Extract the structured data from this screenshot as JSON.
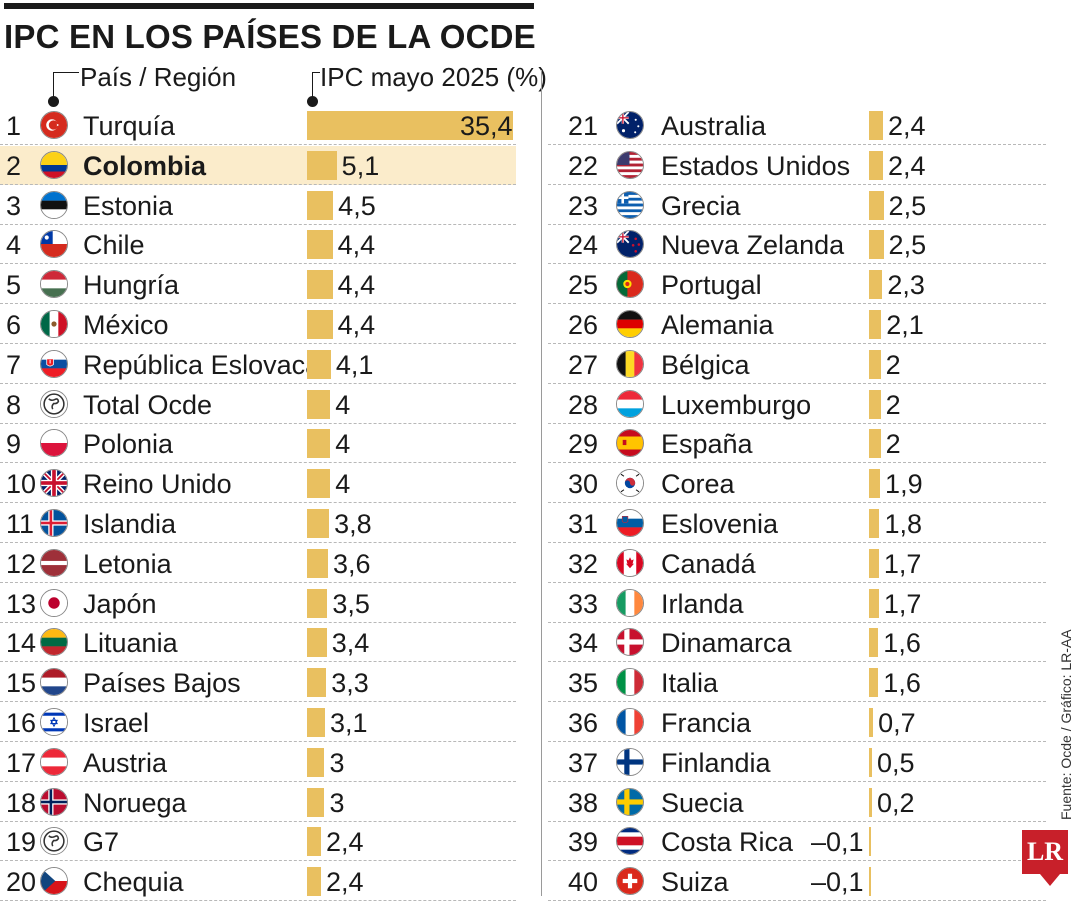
{
  "title": "IPC EN LOS PAÍSES DE LA OCDE",
  "header": {
    "country_label": "País / Región",
    "value_label": "IPC mayo 2025 (%)"
  },
  "source": "Fuente: Ocde / Gráfico: LR-AA",
  "logo_text": "LR",
  "colors": {
    "bar": "#e9c060",
    "highlight": "#fbeccb",
    "text": "#1a1a1a"
  },
  "chart_data": {
    "type": "bar",
    "orientation": "horizontal",
    "title": "IPC EN LOS PAÍSES DE LA OCDE",
    "ylabel": "País / Región",
    "xlabel": "IPC mayo 2025 (%)",
    "highlighted": "Colombia",
    "rows": [
      {
        "rank": "1",
        "name": "Turquía",
        "value": 35.4,
        "label": "35,4",
        "flag": "turkey-flag-icon"
      },
      {
        "rank": "2",
        "name": "Colombia",
        "value": 5.1,
        "label": "5,1",
        "flag": "colombia-flag-icon"
      },
      {
        "rank": "3",
        "name": "Estonia",
        "value": 4.5,
        "label": "4,5",
        "flag": "estonia-flag-icon"
      },
      {
        "rank": "4",
        "name": "Chile",
        "value": 4.4,
        "label": "4,4",
        "flag": "chile-flag-icon"
      },
      {
        "rank": "5",
        "name": "Hungría",
        "value": 4.4,
        "label": "4,4",
        "flag": "hungary-flag-icon"
      },
      {
        "rank": "6",
        "name": "México",
        "value": 4.4,
        "label": "4,4",
        "flag": "mexico-flag-icon"
      },
      {
        "rank": "7",
        "name": "República Eslovaca",
        "value": 4.1,
        "label": "4,1",
        "flag": "slovakia-flag-icon"
      },
      {
        "rank": "8",
        "name": "Total Ocde",
        "value": 4,
        "label": "4",
        "flag": "globe-icon"
      },
      {
        "rank": "9",
        "name": "Polonia",
        "value": 4,
        "label": "4",
        "flag": "poland-flag-icon"
      },
      {
        "rank": "10",
        "name": "Reino Unido",
        "value": 4,
        "label": "4",
        "flag": "uk-flag-icon"
      },
      {
        "rank": "11",
        "name": "Islandia",
        "value": 3.8,
        "label": "3,8",
        "flag": "iceland-flag-icon"
      },
      {
        "rank": "12",
        "name": "Letonia",
        "value": 3.6,
        "label": "3,6",
        "flag": "latvia-flag-icon"
      },
      {
        "rank": "13",
        "name": "Japón",
        "value": 3.5,
        "label": "3,5",
        "flag": "japan-flag-icon"
      },
      {
        "rank": "14",
        "name": "Lituania",
        "value": 3.4,
        "label": "3,4",
        "flag": "lithuania-flag-icon"
      },
      {
        "rank": "15",
        "name": "Países Bajos",
        "value": 3.3,
        "label": "3,3",
        "flag": "netherlands-flag-icon"
      },
      {
        "rank": "16",
        "name": "Israel",
        "value": 3.1,
        "label": "3,1",
        "flag": "israel-flag-icon"
      },
      {
        "rank": "17",
        "name": "Austria",
        "value": 3,
        "label": "3",
        "flag": "austria-flag-icon"
      },
      {
        "rank": "18",
        "name": "Noruega",
        "value": 3,
        "label": "3",
        "flag": "norway-flag-icon"
      },
      {
        "rank": "19",
        "name": "G7",
        "value": 2.4,
        "label": "2,4",
        "flag": "globe-icon"
      },
      {
        "rank": "20",
        "name": "Chequia",
        "value": 2.4,
        "label": "2,4",
        "flag": "czechia-flag-icon"
      },
      {
        "rank": "21",
        "name": "Australia",
        "value": 2.4,
        "label": "2,4",
        "flag": "australia-flag-icon"
      },
      {
        "rank": "22",
        "name": "Estados Unidos",
        "value": 2.4,
        "label": "2,4",
        "flag": "usa-flag-icon"
      },
      {
        "rank": "23",
        "name": "Grecia",
        "value": 2.5,
        "label": "2,5",
        "flag": "greece-flag-icon"
      },
      {
        "rank": "24",
        "name": "Nueva Zelanda",
        "value": 2.5,
        "label": "2,5",
        "flag": "new-zealand-flag-icon"
      },
      {
        "rank": "25",
        "name": "Portugal",
        "value": 2.3,
        "label": "2,3",
        "flag": "portugal-flag-icon"
      },
      {
        "rank": "26",
        "name": "Alemania",
        "value": 2.1,
        "label": "2,1",
        "flag": "germany-flag-icon"
      },
      {
        "rank": "27",
        "name": "Bélgica",
        "value": 2,
        "label": "2",
        "flag": "belgium-flag-icon"
      },
      {
        "rank": "28",
        "name": "Luxemburgo",
        "value": 2,
        "label": "2",
        "flag": "luxembourg-flag-icon"
      },
      {
        "rank": "29",
        "name": "España",
        "value": 2,
        "label": "2",
        "flag": "spain-flag-icon"
      },
      {
        "rank": "30",
        "name": "Corea",
        "value": 1.9,
        "label": "1,9",
        "flag": "korea-flag-icon"
      },
      {
        "rank": "31",
        "name": "Eslovenia",
        "value": 1.8,
        "label": "1,8",
        "flag": "slovenia-flag-icon"
      },
      {
        "rank": "32",
        "name": "Canadá",
        "value": 1.7,
        "label": "1,7",
        "flag": "canada-flag-icon"
      },
      {
        "rank": "33",
        "name": "Irlanda",
        "value": 1.7,
        "label": "1,7",
        "flag": "ireland-flag-icon"
      },
      {
        "rank": "34",
        "name": "Dinamarca",
        "value": 1.6,
        "label": "1,6",
        "flag": "denmark-flag-icon"
      },
      {
        "rank": "35",
        "name": "Italia",
        "value": 1.6,
        "label": "1,6",
        "flag": "italy-flag-icon"
      },
      {
        "rank": "36",
        "name": "Francia",
        "value": 0.7,
        "label": "0,7",
        "flag": "france-flag-icon"
      },
      {
        "rank": "37",
        "name": "Finlandia",
        "value": 0.5,
        "label": "0,5",
        "flag": "finland-flag-icon"
      },
      {
        "rank": "38",
        "name": "Suecia",
        "value": 0.2,
        "label": "0,2",
        "flag": "sweden-flag-icon"
      },
      {
        "rank": "39",
        "name": "Costa Rica",
        "value": -0.1,
        "label": "–0,1",
        "flag": "costa-rica-flag-icon"
      },
      {
        "rank": "40",
        "name": "Suiza",
        "value": -0.1,
        "label": "–0,1",
        "flag": "switzerland-flag-icon"
      }
    ]
  }
}
